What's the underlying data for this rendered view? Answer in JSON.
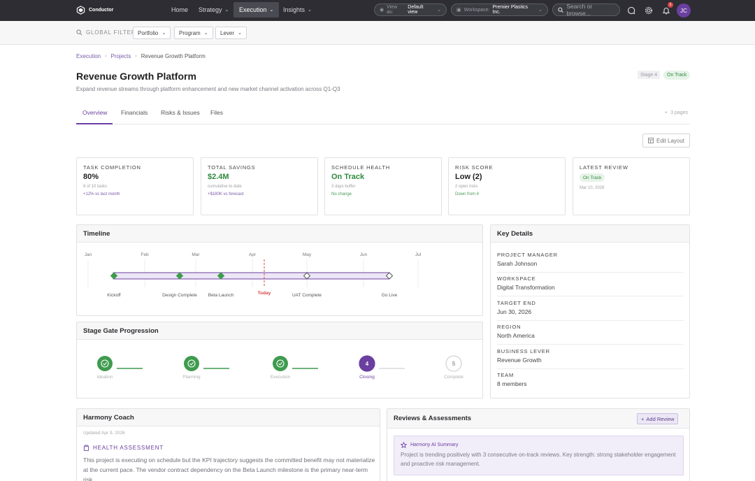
{
  "app": {
    "name": "Conductor"
  },
  "nav": {
    "items": [
      {
        "label": "Home"
      },
      {
        "label": "Strategy"
      },
      {
        "label": "Execution"
      },
      {
        "label": "Insights"
      }
    ],
    "view_as_label": "View as:",
    "view_as_value": "Default view",
    "workspace_label": "Workspace:",
    "workspace_value": "Premier Plastics Inc.",
    "search_placeholder": "Search or browse...",
    "notification_count": "5",
    "user_initials": "JC"
  },
  "filters": {
    "label": "GLOBAL FILTERS",
    "items": [
      {
        "label": "Portfolio"
      },
      {
        "label": "Program"
      },
      {
        "label": "Lever"
      }
    ]
  },
  "breadcrumb": {
    "items": [
      "Execution",
      "Projects"
    ],
    "current": "Revenue Growth Platform"
  },
  "project": {
    "title": "Revenue Growth Platform",
    "subtitle": "Expand revenue streams through platform enhancement and new market channel activation across Q1-Q3",
    "stage_badge": "Stage 4",
    "status_badge": "On Track"
  },
  "tabs": {
    "items": [
      "Overview",
      "Financials",
      "Risks & Issues",
      "Files"
    ],
    "pages": "3 pages"
  },
  "edit_layout": "Edit Layout",
  "kpis": [
    {
      "label": "TASK COMPLETION",
      "value": "80%",
      "sub1": "8 of 10 tasks",
      "sub2": "+12% vs last month"
    },
    {
      "label": "TOTAL SAVINGS",
      "value": "$2.4M",
      "sub1": "cumulative to date",
      "sub2": "+$180K vs forecast"
    },
    {
      "label": "SCHEDULE HEALTH",
      "value": "On Track",
      "sub1": "3 days buffer",
      "sub2": "No change"
    },
    {
      "label": "RISK SCORE",
      "value": "Low (2)",
      "sub1": "2 open risks",
      "sub2": "Down from 4"
    },
    {
      "label": "LATEST REVIEW",
      "badge": "On Track",
      "sub1": "Mar 10, 2026"
    }
  ],
  "timeline": {
    "title": "Timeline",
    "months": [
      "Jan",
      "Feb",
      "Mar",
      "Apr",
      "May",
      "Jun",
      "Jul"
    ],
    "milestones": [
      {
        "label": "Kickoff",
        "done": true
      },
      {
        "label": "Design Complete",
        "done": true
      },
      {
        "label": "Beta Launch",
        "done": true
      },
      {
        "label": "UAT Complete",
        "done": false
      },
      {
        "label": "Go Live",
        "done": false
      }
    ],
    "today_label": "Today"
  },
  "stage_gates": {
    "title": "Stage Gate Progression",
    "stages": [
      {
        "label": "Ideation",
        "state": "done"
      },
      {
        "label": "Planning",
        "state": "done"
      },
      {
        "label": "Execution",
        "state": "done"
      },
      {
        "label": "Closing",
        "state": "active",
        "num": "4"
      },
      {
        "label": "Complete",
        "state": "todo",
        "num": "5"
      }
    ]
  },
  "key_details": {
    "title": "Key Details",
    "rows": [
      {
        "key": "PROJECT MANAGER",
        "value": "Sarah Johnson"
      },
      {
        "key": "WORKSPACE",
        "value": "Digital Transformation"
      },
      {
        "key": "TARGET END",
        "value": "Jun 30, 2026"
      },
      {
        "key": "REGION",
        "value": "North America"
      },
      {
        "key": "BUSINESS LEVER",
        "value": "Revenue Growth"
      },
      {
        "key": "TEAM",
        "value": "8 members"
      }
    ]
  },
  "coach": {
    "title": "Harmony Coach",
    "updated": "Updated Apr 9, 2026",
    "section": "HEALTH ASSESSMENT",
    "text": "This project is executing on schedule but the KPI trajectory suggests the committed benefit may not materialize at the current pace. The vendor contract dependency on the Beta Launch milestone is the primary near-term risk."
  },
  "reviews": {
    "title": "Reviews & Assessments",
    "add_label": "Add Review",
    "ai_title": "Harmony AI Summary",
    "ai_text": "Project is trending positively with 3 consecutive on-track reviews. Key strength: strong stakeholder engagement and proactive risk management."
  },
  "colors": {
    "accent": "#6b3fa0",
    "success": "#2e8b3e",
    "nav_bg": "#2d2d33",
    "today": "#d64545"
  }
}
